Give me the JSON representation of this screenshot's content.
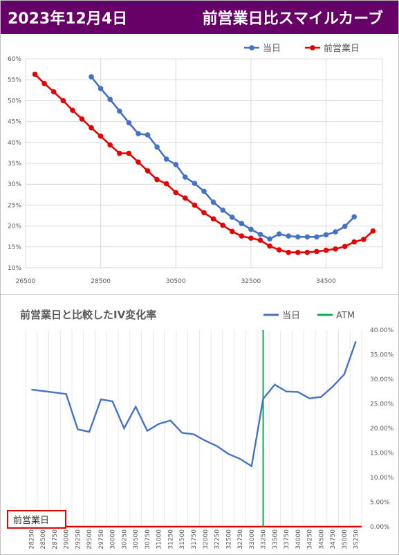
{
  "header": {
    "date": "2023年12月4日",
    "title": "前営業日比スマイルカーブ"
  },
  "colors": {
    "header_bg": "#660066",
    "today": "#4472c4",
    "prev": "#e60000",
    "atm": "#00b050",
    "grid": "#d9d9d9",
    "axis_text": "#595959"
  },
  "chart_data": [
    {
      "type": "line",
      "ylim": [
        0.1,
        0.6
      ],
      "xlim": [
        26500,
        36000
      ],
      "x_ticks": [
        26500,
        28500,
        30500,
        32500,
        34500
      ],
      "y_ticks": [
        0.1,
        0.15,
        0.2,
        0.25,
        0.3,
        0.35,
        0.4,
        0.45,
        0.5,
        0.55,
        0.6
      ],
      "x_tick_labels": [
        "26500",
        "28500",
        "30500",
        "32500",
        "34500"
      ],
      "y_tick_labels": [
        "10%",
        "15%",
        "20%",
        "25%",
        "30%",
        "35%",
        "40%",
        "45%",
        "50%",
        "55%",
        "60%"
      ],
      "legend_position": "top-right",
      "series": [
        {
          "name": "当日",
          "color": "#4472c4",
          "x": [
            28250,
            28500,
            28750,
            29000,
            29250,
            29500,
            29750,
            30000,
            30250,
            30500,
            30750,
            31000,
            31250,
            31500,
            31750,
            32000,
            32250,
            32500,
            32750,
            33000,
            33250,
            33500,
            33750,
            34000,
            34250,
            34500,
            34750,
            35000,
            35250
          ],
          "y": [
            0.557,
            0.529,
            0.503,
            0.475,
            0.447,
            0.421,
            0.418,
            0.389,
            0.36,
            0.347,
            0.317,
            0.302,
            0.283,
            0.257,
            0.238,
            0.221,
            0.206,
            0.192,
            0.18,
            0.169,
            0.181,
            0.176,
            0.174,
            0.174,
            0.174,
            0.179,
            0.186,
            0.199,
            0.222
          ]
        },
        {
          "name": "前営業日",
          "color": "#e60000",
          "x": [
            26750,
            27000,
            27250,
            27500,
            27750,
            28000,
            28250,
            28500,
            28750,
            29000,
            29250,
            29500,
            29750,
            30000,
            30250,
            30500,
            30750,
            31000,
            31250,
            31500,
            31750,
            32000,
            32250,
            32500,
            32750,
            33000,
            33250,
            33500,
            33750,
            34000,
            34250,
            34500,
            34750,
            35000,
            35250,
            35500,
            35750
          ],
          "y": [
            0.563,
            0.541,
            0.521,
            0.5,
            0.477,
            0.456,
            0.435,
            0.415,
            0.394,
            0.374,
            0.374,
            0.353,
            0.332,
            0.311,
            0.301,
            0.28,
            0.267,
            0.25,
            0.232,
            0.217,
            0.202,
            0.187,
            0.176,
            0.171,
            0.166,
            0.152,
            0.143,
            0.137,
            0.137,
            0.137,
            0.139,
            0.142,
            0.145,
            0.151,
            0.162,
            0.168,
            0.188
          ]
        }
      ]
    },
    {
      "type": "line",
      "title": "前営業日と比較したIV変化率",
      "ylim": [
        0,
        0.4
      ],
      "y_tick_labels": [
        "0.00%",
        "5.00%",
        "10.00%",
        "15.00%",
        "20.00%",
        "25.00%",
        "30.00%",
        "35.00%",
        "40.00%"
      ],
      "categories": [
        "28250",
        "28500",
        "28750",
        "29000",
        "29250",
        "29500",
        "29750",
        "30000",
        "30250",
        "30500",
        "30750",
        "31000",
        "31250",
        "31500",
        "31750",
        "32000",
        "32250",
        "32500",
        "32750",
        "33000",
        "33250",
        "33500",
        "33750",
        "34000",
        "34250",
        "34500",
        "34750",
        "35000",
        "35250"
      ],
      "legend_position": "top-right",
      "atm": "33250",
      "baseline_label": "前営業日",
      "series": [
        {
          "name": "当日",
          "color": "#4472c4",
          "values": [
            0.279,
            0.276,
            0.273,
            0.27,
            0.198,
            0.193,
            0.259,
            0.255,
            0.2,
            0.244,
            0.195,
            0.209,
            0.216,
            0.191,
            0.188,
            0.175,
            0.164,
            0.148,
            0.138,
            0.123,
            0.26,
            0.289,
            0.275,
            0.274,
            0.261,
            0.264,
            0.285,
            0.31,
            0.377
          ]
        },
        {
          "name": "ATM",
          "color": "#00b050"
        }
      ]
    }
  ]
}
